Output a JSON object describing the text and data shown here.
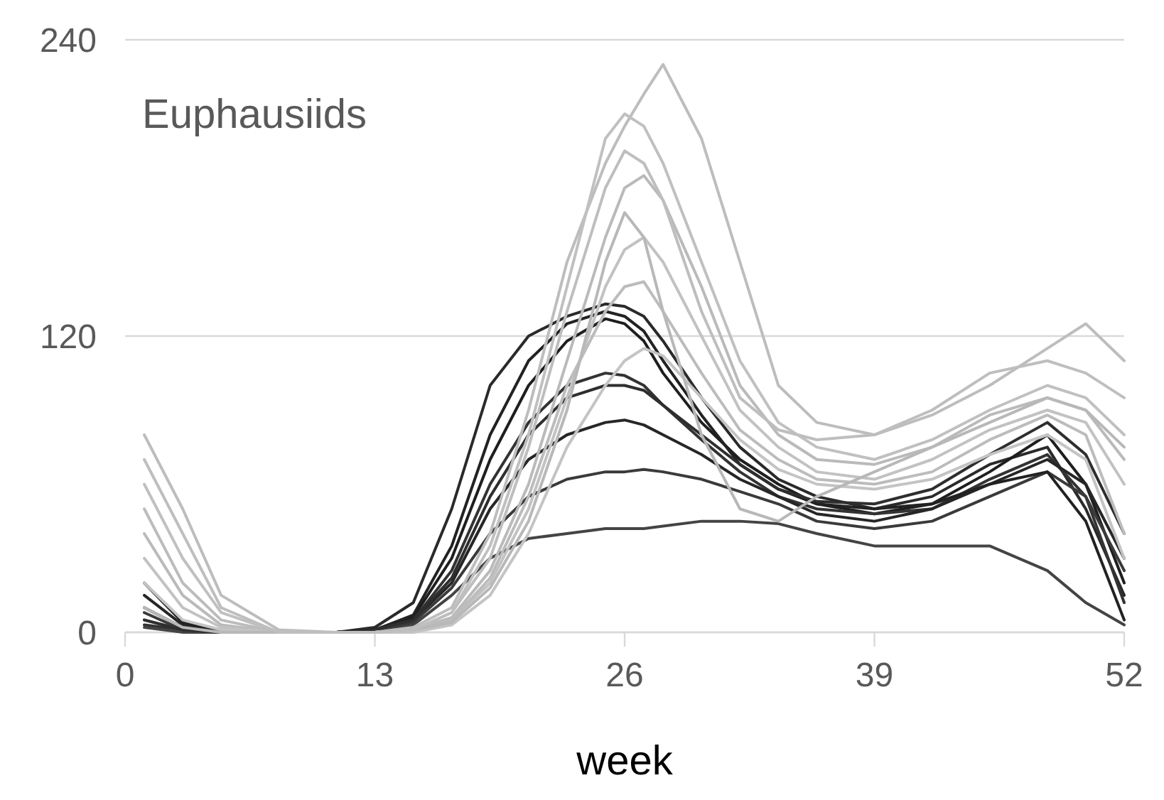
{
  "chart_data": {
    "type": "line",
    "title": "Euphausiids",
    "xlabel": "week",
    "xlim": [
      0,
      52
    ],
    "xticks": [
      0,
      13,
      26,
      39,
      52
    ],
    "ylim": [
      0,
      240
    ],
    "yticks": [
      0,
      120,
      240
    ],
    "grid": "y",
    "marker": "none",
    "line_style": "solid",
    "x": [
      1,
      3,
      5,
      8,
      11,
      13,
      15,
      17,
      19,
      21,
      23,
      25,
      26,
      27,
      28,
      30,
      32,
      34,
      36,
      39,
      42,
      45,
      48,
      50,
      52
    ],
    "series": [
      {
        "color": "#2a2a2a",
        "values": [
          5,
          1,
          0,
          0,
          0,
          2,
          12,
          50,
          100,
          120,
          128,
          133,
          132,
          128,
          118,
          95,
          75,
          62,
          55,
          50,
          55,
          68,
          75,
          50,
          15
        ]
      },
      {
        "color": "#1e1e1e",
        "values": [
          10,
          2,
          0,
          0,
          0,
          1,
          6,
          30,
          70,
          100,
          118,
          127,
          125,
          118,
          105,
          85,
          70,
          60,
          52,
          48,
          52,
          65,
          80,
          60,
          20
        ]
      },
      {
        "color": "#333333",
        "values": [
          3,
          1,
          0,
          0,
          0,
          1,
          5,
          25,
          60,
          85,
          100,
          105,
          104,
          100,
          92,
          78,
          65,
          55,
          50,
          48,
          50,
          62,
          72,
          55,
          12
        ]
      },
      {
        "color": "#262626",
        "values": [
          15,
          3,
          0,
          0,
          0,
          1,
          5,
          20,
          50,
          70,
          80,
          85,
          86,
          84,
          80,
          72,
          62,
          55,
          48,
          45,
          50,
          60,
          70,
          60,
          30
        ]
      },
      {
        "color": "#444444",
        "values": [
          2,
          0,
          0,
          0,
          0,
          0,
          3,
          15,
          30,
          38,
          40,
          42,
          42,
          42,
          43,
          45,
          45,
          44,
          40,
          35,
          35,
          35,
          25,
          12,
          3
        ]
      },
      {
        "color": "#3a3a3a",
        "values": [
          8,
          1,
          0,
          0,
          0,
          1,
          4,
          18,
          40,
          55,
          62,
          65,
          65,
          66,
          65,
          62,
          57,
          52,
          45,
          42,
          45,
          55,
          65,
          55,
          25
        ]
      },
      {
        "color": "#222222",
        "values": [
          20,
          4,
          0,
          0,
          0,
          1,
          7,
          35,
          80,
          110,
          125,
          130,
          128,
          122,
          110,
          88,
          68,
          58,
          52,
          50,
          52,
          60,
          65,
          45,
          5
        ]
      },
      {
        "color": "#2e2e2e",
        "values": [
          5,
          1,
          0,
          0,
          0,
          1,
          5,
          22,
          55,
          80,
          95,
          100,
          100,
          98,
          92,
          80,
          68,
          58,
          53,
          52,
          58,
          72,
          85,
          72,
          40
        ]
      },
      {
        "color": "#bdbdbd",
        "values": [
          80,
          50,
          15,
          1,
          0,
          0,
          2,
          10,
          40,
          90,
          150,
          190,
          205,
          218,
          230,
          200,
          150,
          100,
          85,
          80,
          88,
          100,
          115,
          125,
          110
        ]
      },
      {
        "color": "#c0c0c0",
        "values": [
          60,
          30,
          8,
          0,
          0,
          0,
          1,
          8,
          35,
          80,
          140,
          200,
          210,
          205,
          190,
          150,
          110,
          85,
          75,
          70,
          78,
          90,
          100,
          95,
          80
        ]
      },
      {
        "color": "#bababa",
        "values": [
          40,
          15,
          3,
          0,
          0,
          0,
          1,
          6,
          25,
          60,
          110,
          160,
          180,
          185,
          175,
          140,
          100,
          80,
          70,
          68,
          75,
          88,
          95,
          90,
          70
        ]
      },
      {
        "color": "#c2c2c2",
        "values": [
          30,
          10,
          2,
          0,
          0,
          0,
          1,
          5,
          20,
          50,
          95,
          140,
          155,
          160,
          150,
          120,
          90,
          75,
          65,
          62,
          70,
          82,
          90,
          85,
          60
        ]
      },
      {
        "color": "#bcbcbc",
        "values": [
          50,
          20,
          5,
          0,
          0,
          0,
          1,
          5,
          22,
          55,
          100,
          130,
          140,
          142,
          130,
          105,
          82,
          70,
          62,
          60,
          65,
          78,
          88,
          80,
          40
        ]
      },
      {
        "color": "#c4c4c4",
        "values": [
          20,
          5,
          1,
          0,
          0,
          0,
          0,
          3,
          15,
          40,
          75,
          100,
          110,
          115,
          112,
          95,
          78,
          66,
          60,
          58,
          62,
          72,
          80,
          70,
          30
        ]
      },
      {
        "color": "#b8b8b8",
        "values": [
          10,
          2,
          0,
          0,
          0,
          0,
          1,
          4,
          18,
          45,
          90,
          150,
          170,
          160,
          130,
          80,
          50,
          45,
          55,
          65,
          75,
          85,
          95,
          90,
          75
        ]
      },
      {
        "color": "#bebebe",
        "values": [
          70,
          40,
          10,
          0,
          0,
          0,
          1,
          8,
          30,
          75,
          130,
          180,
          195,
          190,
          175,
          130,
          95,
          82,
          78,
          80,
          90,
          105,
          110,
          105,
          95
        ]
      }
    ]
  }
}
